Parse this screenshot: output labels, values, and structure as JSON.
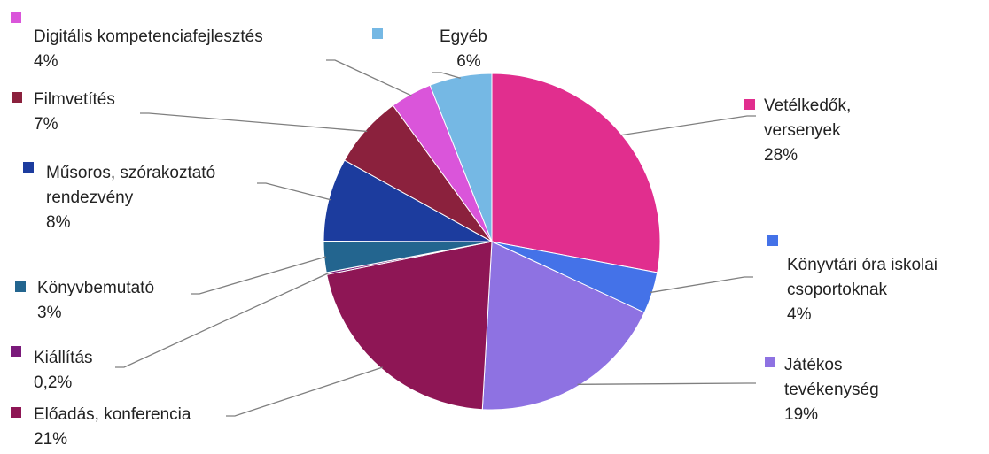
{
  "chart_data": {
    "type": "pie",
    "slices": [
      {
        "label": "Vetélkedők,\nversenyek",
        "pct_text": "28%",
        "value": 28,
        "color": "#E12E8E"
      },
      {
        "label": "Könyvtári óra iskolai\ncsoportoknak",
        "pct_text": "4%",
        "value": 4,
        "color": "#4472E8"
      },
      {
        "label": "Játékos\ntevékenység",
        "pct_text": "19%",
        "value": 19,
        "color": "#8E72E2"
      },
      {
        "label": "Előadás, konferencia",
        "pct_text": "21%",
        "value": 21,
        "color": "#8E1655"
      },
      {
        "label": "Kiállítás",
        "pct_text": "0,2%",
        "value": 0.2,
        "color": "#7A1A7A"
      },
      {
        "label": "Könyvbemutató",
        "pct_text": "3%",
        "value": 3,
        "color": "#23658F"
      },
      {
        "label": "Műsoros, szórakoztató\nrendezvény",
        "pct_text": "8%",
        "value": 8,
        "color": "#1C3C9E"
      },
      {
        "label": "Filmvetítés",
        "pct_text": "7%",
        "value": 7,
        "color": "#8B213D"
      },
      {
        "label": "Digitális kompetenciafejlesztés",
        "pct_text": "4%",
        "value": 4,
        "color": "#DA55DA"
      },
      {
        "label": "Egyéb",
        "pct_text": "6%",
        "value": 6,
        "color": "#75B8E4"
      }
    ]
  }
}
